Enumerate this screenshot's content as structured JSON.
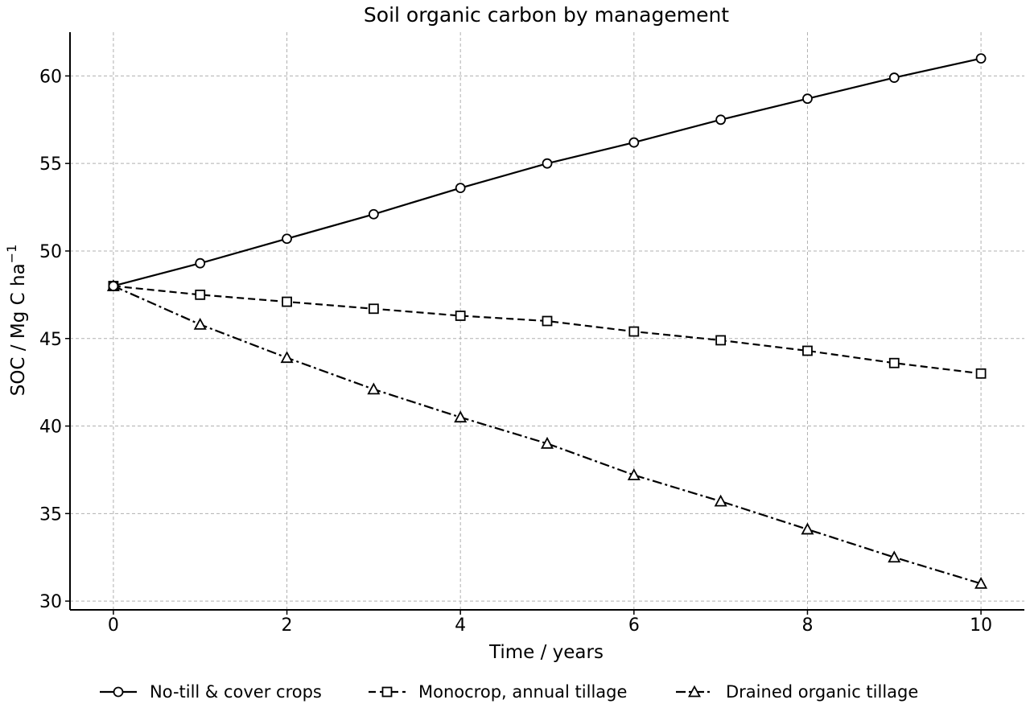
{
  "chart_data": {
    "type": "line",
    "title": "Soil organic carbon by management",
    "xlabel": "Time / years",
    "ylabel": "SOC / Mg C ha",
    "ylabel_superscript": "−1",
    "xlim": [
      -0.5,
      10.5
    ],
    "ylim": [
      29.5,
      62.5
    ],
    "xticks": [
      0,
      2,
      4,
      6,
      8,
      10
    ],
    "yticks": [
      30,
      35,
      40,
      45,
      50,
      55,
      60
    ],
    "grid": true,
    "legend_position": "bottom",
    "x": [
      0,
      1,
      2,
      3,
      4,
      5,
      6,
      7,
      8,
      9,
      10
    ],
    "series": [
      {
        "name": "No-till & cover crops",
        "marker": "circle",
        "linestyle": "solid",
        "values": [
          48.0,
          49.3,
          50.7,
          52.1,
          53.6,
          55.0,
          56.2,
          57.5,
          58.7,
          59.9,
          61.0
        ]
      },
      {
        "name": "Monocrop, annual tillage",
        "marker": "square",
        "linestyle": "dashed",
        "values": [
          48.0,
          47.5,
          47.1,
          46.7,
          46.3,
          46.0,
          45.4,
          44.9,
          44.3,
          43.6,
          43.0
        ]
      },
      {
        "name": "Drained organic tillage",
        "marker": "triangle",
        "linestyle": "dashdot",
        "values": [
          48.0,
          45.8,
          43.9,
          42.1,
          40.5,
          39.0,
          37.2,
          35.7,
          34.1,
          32.5,
          31.0
        ]
      }
    ],
    "colors": {
      "line": "#000000",
      "grid": "#b0b0b0",
      "marker_fill": "#ffffff"
    }
  }
}
